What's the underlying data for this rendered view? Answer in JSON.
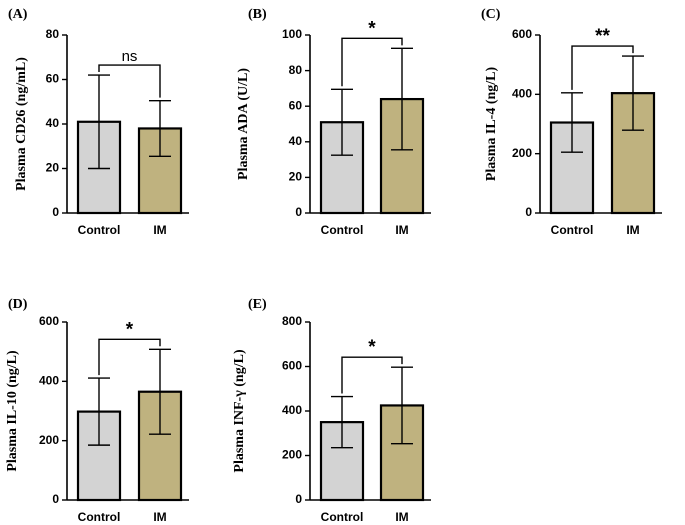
{
  "chart_data": [
    {
      "type": "bar",
      "panel": "(A)",
      "ylabel": "Plasma CD26 (ng/mL)",
      "categories": [
        "Control",
        "IM"
      ],
      "values": [
        41,
        38
      ],
      "errors": [
        21,
        12.5
      ],
      "ylim": [
        0,
        80
      ],
      "yticks": [
        0,
        20,
        40,
        60,
        80
      ],
      "significance": "ns",
      "bar_colors": [
        "#d3d3d3",
        "#bfb27f"
      ]
    },
    {
      "type": "bar",
      "panel": "(B)",
      "ylabel": "Plasma ADA (U/L)",
      "categories": [
        "Control",
        "IM"
      ],
      "values": [
        51,
        64
      ],
      "errors": [
        18.5,
        28.5
      ],
      "ylim": [
        0,
        100
      ],
      "yticks": [
        0,
        20,
        40,
        60,
        80,
        100
      ],
      "significance": "*",
      "bar_colors": [
        "#d3d3d3",
        "#bfb27f"
      ]
    },
    {
      "type": "bar",
      "panel": "(C)",
      "ylabel": "Plasma IL-4 (ng/L)",
      "categories": [
        "Control",
        "IM"
      ],
      "values": [
        305,
        404
      ],
      "errors": [
        100,
        125
      ],
      "ylim": [
        0,
        600
      ],
      "yticks": [
        0,
        200,
        400,
        600
      ],
      "significance": "**",
      "bar_colors": [
        "#d3d3d3",
        "#bfb27f"
      ]
    },
    {
      "type": "bar",
      "panel": "(D)",
      "ylabel": "Plasma IL-10 (ng/L)",
      "categories": [
        "Control",
        "IM"
      ],
      "values": [
        298,
        365
      ],
      "errors": [
        113,
        143
      ],
      "ylim": [
        0,
        600
      ],
      "yticks": [
        0,
        200,
        400,
        600
      ],
      "significance": "*",
      "bar_colors": [
        "#d3d3d3",
        "#bfb27f"
      ]
    },
    {
      "type": "bar",
      "panel": "(E)",
      "ylabel": "Plasma INF-γ (ng/L)",
      "categories": [
        "Control",
        "IM"
      ],
      "values": [
        350,
        425
      ],
      "errors": [
        115,
        172
      ],
      "ylim": [
        0,
        800
      ],
      "yticks": [
        0,
        200,
        400,
        600,
        800
      ],
      "significance": "*",
      "bar_colors": [
        "#d3d3d3",
        "#bfb27f"
      ]
    }
  ]
}
